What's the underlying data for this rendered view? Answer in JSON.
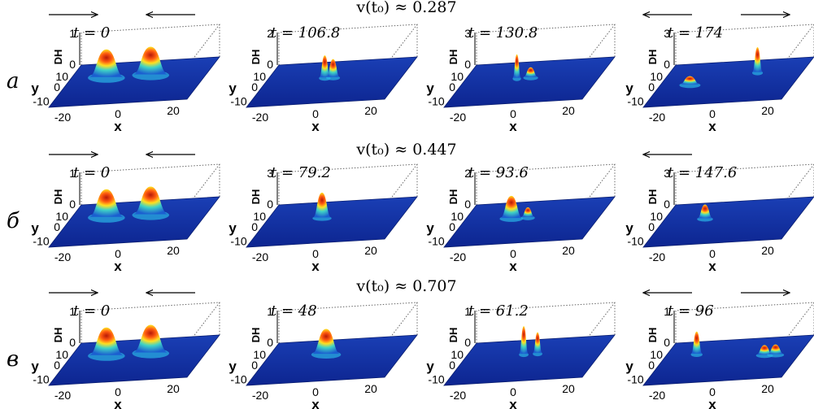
{
  "rows": [
    {
      "row_label": "а",
      "velocity_label": "v(t₀) ≈ 0.287",
      "panels": [
        {
          "time_label": "t = 0",
          "dh_max": "1",
          "arrows": [
            "right",
            "left"
          ],
          "peaks": [
            {
              "x": -12,
              "y": 4,
              "h": 1,
              "w": 3.5
            },
            {
              "x": 4,
              "y": 4,
              "h": 1,
              "w": 3.5
            }
          ]
        },
        {
          "time_label": "t = 106.8",
          "dh_max": "2",
          "arrows": [],
          "peaks": [
            {
              "x": -4,
              "y": 3,
              "h": 0.8,
              "w": 1.1
            },
            {
              "x": -1,
              "y": 3,
              "h": 0.65,
              "w": 1.3
            }
          ]
        },
        {
          "time_label": "t = 130.8",
          "dh_max": "3",
          "arrows": [],
          "peaks": [
            {
              "x": -6,
              "y": 3,
              "h": 0.85,
              "w": 0.8
            },
            {
              "x": -1,
              "y": 3,
              "h": 0.35,
              "w": 1.4
            }
          ]
        },
        {
          "time_label": "t = 174",
          "dh_max": "3",
          "arrows": [
            "left",
            "right"
          ],
          "peaks": [
            {
              "x": -14,
              "y": 0,
              "h": 0.3,
              "w": 2
            },
            {
              "x": 8,
              "y": 5,
              "h": 0.9,
              "w": 1.0
            }
          ]
        }
      ]
    },
    {
      "row_label": "б",
      "velocity_label": "v(t₀) ≈ 0.447",
      "panels": [
        {
          "time_label": "t = 0",
          "dh_max": "1",
          "arrows": [
            "right",
            "left"
          ],
          "peaks": [
            {
              "x": -12,
              "y": 4,
              "h": 1,
              "w": 3.5
            },
            {
              "x": 4,
              "y": 4,
              "h": 1,
              "w": 3.5
            }
          ]
        },
        {
          "time_label": "t = 79.2",
          "dh_max": "3",
          "arrows": [],
          "peaks": [
            {
              "x": -5,
              "y": 3,
              "h": 0.9,
              "w": 1.8
            }
          ]
        },
        {
          "time_label": "t = 93.6",
          "dh_max": "2",
          "arrows": [],
          "peaks": [
            {
              "x": -8,
              "y": 3,
              "h": 0.8,
              "w": 2.2
            },
            {
              "x": -2,
              "y": 3,
              "h": 0.35,
              "w": 1.3
            }
          ]
        },
        {
          "time_label": "t = 147.6",
          "dh_max": "3",
          "arrows": [
            "left"
          ],
          "peaks": [
            {
              "x": -10,
              "y": 3,
              "h": 0.5,
              "w": 1.5
            }
          ]
        }
      ]
    },
    {
      "row_label": "в",
      "velocity_label": "v(t₀) ≈ 0.707",
      "panels": [
        {
          "time_label": "t = 0",
          "dh_max": "1",
          "arrows": [
            "right",
            "left"
          ],
          "peaks": [
            {
              "x": -12,
              "y": 4,
              "h": 1,
              "w": 3.5
            },
            {
              "x": 4,
              "y": 4,
              "h": 1,
              "w": 3.5
            }
          ]
        },
        {
          "time_label": "t = 48",
          "dh_max": "1",
          "arrows": [],
          "peaks": [
            {
              "x": -4,
              "y": 4,
              "h": 0.9,
              "w": 2.8
            }
          ]
        },
        {
          "time_label": "t = 61.2",
          "dh_max": "1",
          "arrows": [],
          "peaks": [
            {
              "x": -4,
              "y": 4,
              "h": 1,
              "w": 0.9
            },
            {
              "x": 1,
              "y": 4,
              "h": 0.75,
              "w": 0.9
            }
          ]
        },
        {
          "time_label": "t = 96",
          "dh_max": "1",
          "arrows": [
            "left",
            "right"
          ],
          "peaks": [
            {
              "x": -14,
              "y": 5,
              "h": 0.8,
              "w": 1.1
            },
            {
              "x": 12,
              "y": 2,
              "h": 0.35,
              "w": 1.6
            },
            {
              "x": 16,
              "y": 2,
              "h": 0.35,
              "w": 1.6
            }
          ]
        }
      ]
    }
  ],
  "axes": {
    "x_label": "x",
    "y_label": "y",
    "z_label": "DH",
    "x_ticks": [
      "-20",
      "0",
      "20"
    ],
    "y_ticks": [
      "10",
      "0",
      "-10"
    ],
    "z_zero": "0"
  },
  "colors": {
    "plane": "#0f2b9a",
    "peak_top": "#c81e0a",
    "mid": "#ffe020",
    "low": "#2ab4e6"
  }
}
